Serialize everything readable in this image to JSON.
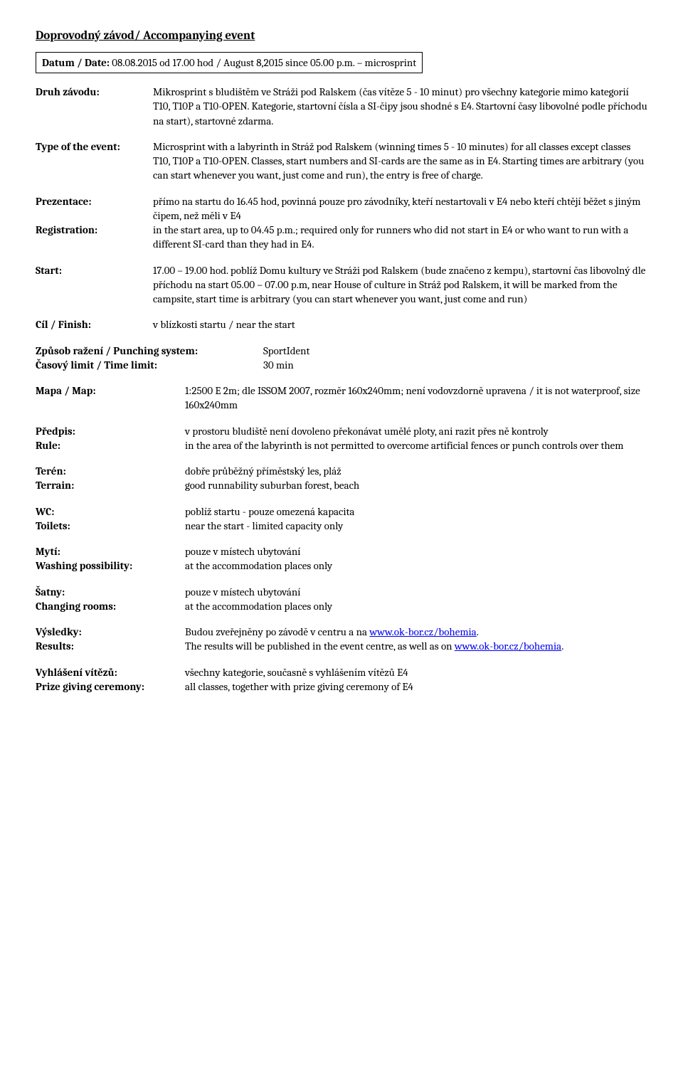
{
  "title": "Doprovodný závod/ Accompanying event",
  "date_label": "Datum / Date:",
  "date_value": "08.08.2015 od 17.00 hod / August 8,2015 since 05.00 p.m. – microsprint",
  "druh": {
    "label": "Druh závodu:",
    "text": "Mikrosprint s bludištěm ve Stráži pod Ralskem (čas vítěze 5 - 10 minut) pro všechny kategorie mimo kategorií T10, T10P a T10-OPEN. Kategorie, startovní čísla a SI-čipy jsou shodné s E4. Startovní časy libovolné podle příchodu na start), startovné zdarma."
  },
  "type": {
    "label": "Type of the event:",
    "text": "Microsprint with a labyrinth in Stráž pod Ralskem (winning times 5 - 10 minutes) for all classes except classes T10, T10P a T10-OPEN. Classes, start numbers and SI-cards are the same as in E4. Starting times are arbitrary (you can start whenever you want, just come and run), the entry is free of charge."
  },
  "prez": {
    "label": "Prezentace:",
    "text": "přímo na startu do 16.45 hod, povinná pouze pro závodníky, kteří nestartovali v E4 nebo kteří chtějí běžet s jiným čipem, než měli v E4"
  },
  "reg": {
    "label": "Registration:",
    "text": "in the start area, up to 04.45 p.m.; required only for runners who did not start in E4 or who want to run with a different SI-card than they had in E4."
  },
  "start": {
    "label": "Start:",
    "text": "17.00 – 19.00 hod. poblíž Domu kultury ve Stráži pod Ralskem (bude značeno z kempu), startovní čas libovolný dle příchodu na start 05.00 – 07.00 p.m, near House of culture in Stráž pod Ralskem, it will be marked from the campsite, start time is arbitrary (you can start whenever you want, just come and run)"
  },
  "cil": {
    "label": "Cíl / Finish:",
    "text": "v blízkosti startu / near the start"
  },
  "punch": {
    "label": "Způsob ražení / Punching system:",
    "val": "SportIdent"
  },
  "time": {
    "label": "Časový limit / Time limit:",
    "val": "30 min"
  },
  "mapa": {
    "label": "Mapa / Map:",
    "text": "1:2500 E 2m; dle ISSOM 2007, rozměr  160x240mm; není vodovzdorně upravena / it is not waterproof, size 160x240mm"
  },
  "predpis": {
    "label": "Předpis:",
    "text": "v prostoru bludiště není dovoleno překonávat umělé ploty, ani razit přes ně kontroly"
  },
  "rule": {
    "label": "Rule:",
    "text": "in the area of the labyrinth is not permitted to overcome artificial fences or punch controls over them"
  },
  "teren": {
    "label": "Terén:",
    "text": "dobře průběžný příměstský les, pláž"
  },
  "terrain": {
    "label": "Terrain:",
    "text": "good runnability suburban forest, beach"
  },
  "wc": {
    "label": "WC:",
    "text": "poblíž startu - pouze omezená kapacita"
  },
  "toilets": {
    "label": "Toilets:",
    "text": "near the start - limited capacity only"
  },
  "myti": {
    "label": "Mytí:",
    "text": "pouze v místech ubytování"
  },
  "wash": {
    "label": "Washing possibility:",
    "text": "at the accommodation places only"
  },
  "satny": {
    "label": "Šatny:",
    "text": "pouze v místech ubytování"
  },
  "changing": {
    "label": "Changing rooms:",
    "text": "at the accommodation places only"
  },
  "vysledky": {
    "label": "Výsledky:",
    "pre": "Budou zveřejněny po závodě v centru a na ",
    "link": "www.ok-bor.cz/bohemia",
    "post": "."
  },
  "results": {
    "label": "Results:",
    "pre": "The results will be published in the event centre, as well as on ",
    "link": "www.ok-bor.cz/bohemia",
    "post": "."
  },
  "vyhl": {
    "label": "Vyhlášení vítězů:",
    "text": "všechny kategorie, současně s vyhlášením vítězů E4"
  },
  "prize": {
    "label": "Prize giving ceremony:",
    "text": "all classes, together with prize giving ceremony of E4"
  }
}
